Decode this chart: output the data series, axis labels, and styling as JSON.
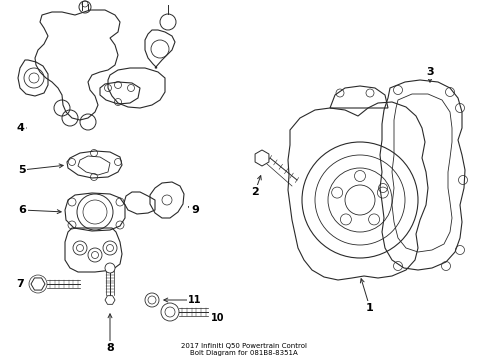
{
  "title": "2017 Infiniti Q50 Powertrain Control\nBolt Diagram for 081B8-8351A",
  "background_color": "#ffffff",
  "line_color": "#2a2a2a",
  "label_color": "#000000",
  "figsize": [
    4.89,
    3.6
  ],
  "dpi": 100
}
